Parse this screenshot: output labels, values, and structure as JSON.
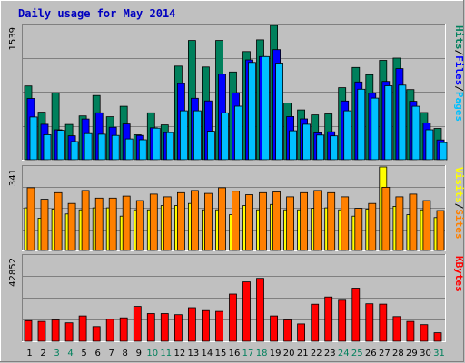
{
  "chart_data": {
    "type": "bar",
    "title": "Daily usage for May 2014",
    "categories": [
      "1",
      "2",
      "3",
      "4",
      "5",
      "6",
      "7",
      "8",
      "9",
      "10",
      "11",
      "12",
      "13",
      "14",
      "15",
      "16",
      "17",
      "18",
      "19",
      "20",
      "21",
      "22",
      "23",
      "24",
      "25",
      "26",
      "27",
      "28",
      "29",
      "30",
      "31"
    ],
    "weekend_days": [
      "3",
      "4",
      "10",
      "11",
      "17",
      "18",
      "24",
      "25",
      "31"
    ],
    "panels": [
      {
        "id": "hits",
        "ymax_label": "1539",
        "ymax": 1539,
        "series": [
          {
            "name": "Hits",
            "color": "#00805c",
            "values": [
              845,
              545,
              766,
              404,
              502,
              736,
              493,
              613,
              286,
              538,
              399,
              1073,
              1366,
              1063,
              1366,
              1006,
              1240,
              1374,
              1539,
              651,
              571,
              514,
              525,
              826,
              1058,
              974,
              1139,
              1165,
              804,
              541,
              359
            ]
          },
          {
            "name": "Files",
            "color": "#0000ff",
            "values": [
              702,
              407,
              343,
              275,
              467,
              538,
              372,
              410,
              279,
              366,
              311,
              872,
              704,
              674,
              981,
              766,
              1144,
              1182,
              1261,
              495,
              468,
              308,
              320,
              673,
              891,
              762,
              897,
              1044,
              670,
              420,
              227
            ]
          },
          {
            "name": "Pages",
            "color": "#00c0ff",
            "values": [
              490,
              287,
              337,
              208,
              300,
              292,
              279,
              238,
              229,
              362,
              311,
              561,
              561,
              327,
              538,
              614,
              1115,
              1182,
              1107,
              332,
              407,
              283,
              273,
              561,
              808,
              706,
              847,
              855,
              612,
              343,
              197
            ]
          }
        ],
        "legend": [
          "Pages",
          "Files",
          "Hits"
        ]
      },
      {
        "id": "visits",
        "ymax_label": "341",
        "ymax": 341,
        "series": [
          {
            "name": "Visits",
            "color": "#ffff00",
            "values": [
              174,
              132,
              169,
              149,
              166,
              174,
              174,
              140,
              166,
              166,
              183,
              183,
              192,
              166,
              166,
              146,
              183,
              166,
              188,
              166,
              166,
              172,
              174,
              166,
              140,
              169,
              341,
              180,
              146,
              166,
              134
            ]
          },
          {
            "name": "Sites",
            "color": "#ff8000",
            "values": [
              256,
              209,
              236,
              192,
              245,
              214,
              214,
              222,
              204,
              230,
              219,
              236,
              245,
              233,
              256,
              242,
              228,
              236,
              239,
              219,
              236,
              245,
              236,
              219,
              172,
              192,
              258,
              219,
              230,
              204,
              163
            ]
          }
        ],
        "legend": [
          "Sites",
          "Visits"
        ]
      },
      {
        "id": "kbytes",
        "ymax_label": "42852",
        "ymax": 42852,
        "series": [
          {
            "name": "KBytes",
            "color": "#ff0000",
            "values": [
              10350,
              10000,
              10700,
              9250,
              12700,
              7400,
              11050,
              11750,
              17500,
              13900,
              13900,
              13350,
              16850,
              15400,
              15000,
              23700,
              29800,
              31600,
              12700,
              10700,
              8700,
              18600,
              22250,
              20600,
              26650,
              18850,
              18650,
              12400,
              10000,
              8350,
              4300
            ]
          }
        ],
        "legend": [
          "KBytes"
        ]
      }
    ]
  },
  "colors": {
    "background": "#c0c0c0",
    "plot_bg": "#c0c0c0",
    "title": "#0000c0",
    "axis_text": "#000000",
    "weekend_text": "#00805c",
    "gridline": "#808080"
  }
}
